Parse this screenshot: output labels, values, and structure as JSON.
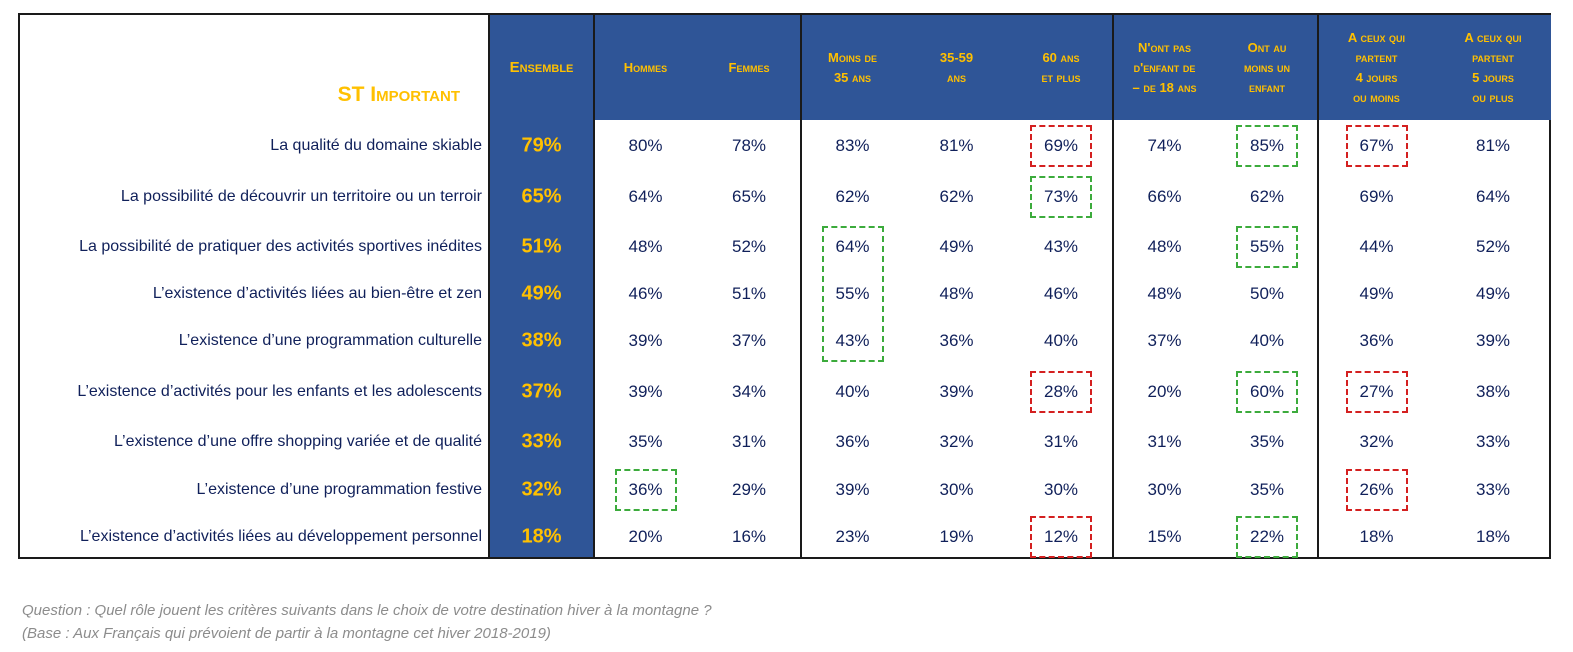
{
  "chart_data": {
    "type": "table",
    "title": "ST Important",
    "columns": [
      "Ensemble",
      "Hommes",
      "Femmes",
      "Moins de\n35 ans",
      "35-59\nans",
      "60 ans\net plus",
      "N'ont pas\nd'enfant de\n– de 18 ans",
      "Ont au\nmoins un\nenfant",
      "A ceux qui\npartent\n4 jours\nou moins",
      "A ceux qui\npartent\n5 jours\nou plus"
    ],
    "rows": [
      {
        "label": "La qualité du domaine skiable",
        "values": [
          "79%",
          "80%",
          "78%",
          "83%",
          "81%",
          "69%",
          "74%",
          "85%",
          "67%",
          "81%"
        ]
      },
      {
        "label": "La possibilité de découvrir un territoire ou un terroir",
        "values": [
          "65%",
          "64%",
          "65%",
          "62%",
          "62%",
          "73%",
          "66%",
          "62%",
          "69%",
          "64%"
        ]
      },
      {
        "label": "La possibilité de pratiquer des activités sportives inédites",
        "values": [
          "51%",
          "48%",
          "52%",
          "64%",
          "49%",
          "43%",
          "48%",
          "55%",
          "44%",
          "52%"
        ]
      },
      {
        "label": "L’existence d’activités liées au bien-être et zen",
        "values": [
          "49%",
          "46%",
          "51%",
          "55%",
          "48%",
          "46%",
          "48%",
          "50%",
          "49%",
          "49%"
        ]
      },
      {
        "label": "L’existence d’une programmation culturelle",
        "values": [
          "38%",
          "39%",
          "37%",
          "43%",
          "36%",
          "40%",
          "37%",
          "40%",
          "36%",
          "39%"
        ]
      },
      {
        "label": "L’existence d’activités pour les enfants et les adolescents",
        "values": [
          "37%",
          "39%",
          "34%",
          "40%",
          "39%",
          "28%",
          "20%",
          "60%",
          "27%",
          "38%"
        ]
      },
      {
        "label": "L’existence d’une offre shopping variée et de qualité",
        "values": [
          "33%",
          "35%",
          "31%",
          "36%",
          "32%",
          "31%",
          "31%",
          "35%",
          "32%",
          "33%"
        ]
      },
      {
        "label": "L’existence d’une programmation festive",
        "values": [
          "32%",
          "36%",
          "29%",
          "39%",
          "30%",
          "30%",
          "30%",
          "35%",
          "26%",
          "33%"
        ]
      },
      {
        "label": "L’existence d’activités liées au développement personnel",
        "values": [
          "18%",
          "20%",
          "16%",
          "23%",
          "19%",
          "12%",
          "15%",
          "22%",
          "18%",
          "18%"
        ]
      }
    ],
    "highlights": [
      {
        "row": 0,
        "col": 5,
        "color": "red"
      },
      {
        "row": 0,
        "col": 7,
        "color": "green"
      },
      {
        "row": 0,
        "col": 8,
        "color": "red"
      },
      {
        "row": 1,
        "col": 5,
        "color": "green"
      },
      {
        "row": 2,
        "col": 3,
        "color": "green",
        "span": 3
      },
      {
        "row": 2,
        "col": 7,
        "color": "green"
      },
      {
        "row": 5,
        "col": 5,
        "color": "red"
      },
      {
        "row": 5,
        "col": 7,
        "color": "green"
      },
      {
        "row": 5,
        "col": 8,
        "color": "red"
      },
      {
        "row": 7,
        "col": 1,
        "color": "green"
      },
      {
        "row": 7,
        "col": 8,
        "color": "red"
      },
      {
        "row": 8,
        "col": 5,
        "color": "red"
      },
      {
        "row": 8,
        "col": 7,
        "color": "green"
      }
    ],
    "colors": {
      "header_bg": "#2f5597",
      "header_text": "#ffc000",
      "ensemble_text": "#ffc000",
      "cell_text": "#10205a",
      "highlight_up": "#3cab3c",
      "highlight_down": "#d42020"
    }
  },
  "footnote": {
    "question": "Question : Quel rôle jouent les critères suivants dans le choix de votre destination hiver à la montagne ?",
    "base": "(Base : Aux Français qui prévoient de partir à la montagne cet hiver 2018-2019)"
  }
}
